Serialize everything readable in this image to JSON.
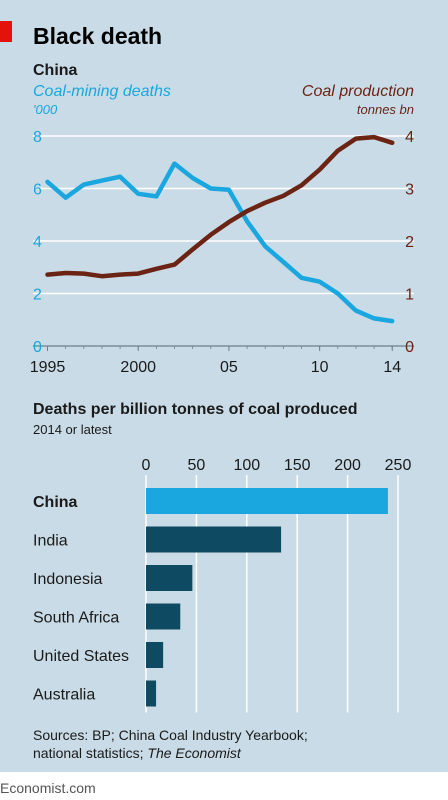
{
  "headline": "Black death",
  "footer": {
    "sources_prefix": "Sources: BP; China Coal Industry Yearbook;",
    "sources_line2": "national statistics;",
    "sources_italic": "The Economist",
    "site": "Economist.com"
  },
  "colors": {
    "deaths_line": "#1aa6de",
    "production_line": "#6b2314",
    "china_bar": "#1aa6de",
    "other_bars": "#0e4a62",
    "accent_red": "#e3120b",
    "panel_bg": "#c9dbe6"
  },
  "chart_data": [
    {
      "type": "line",
      "title": "China",
      "x_ticks": [
        "1995",
        "2000",
        "05",
        "10",
        "14"
      ],
      "x_tick_values": [
        1995,
        2000,
        2005,
        2010,
        2014
      ],
      "xlim": [
        1994.2,
        2015.2
      ],
      "left_axis": {
        "label": "Coal-mining deaths",
        "unit": "'000",
        "ylim": [
          0,
          8
        ],
        "ticks": [
          0,
          2,
          4,
          6,
          8
        ]
      },
      "right_axis": {
        "label": "Coal production",
        "unit": "tonnes bn",
        "ylim": [
          0,
          4
        ],
        "ticks": [
          0,
          1,
          2,
          3,
          4
        ]
      },
      "grid": true,
      "series": [
        {
          "name": "Coal-mining deaths",
          "axis": "left",
          "x": [
            1995,
            1996,
            1997,
            1998,
            1999,
            2000,
            2001,
            2002,
            2003,
            2004,
            2005,
            2006,
            2007,
            2008,
            2009,
            2010,
            2011,
            2012,
            2013,
            2014
          ],
          "values": [
            6.25,
            5.65,
            6.15,
            6.3,
            6.45,
            5.8,
            5.7,
            6.95,
            6.4,
            6.0,
            5.95,
            4.75,
            3.8,
            3.2,
            2.6,
            2.45,
            2.0,
            1.35,
            1.05,
            0.95
          ]
        },
        {
          "name": "Coal production",
          "axis": "right",
          "x": [
            1995,
            1996,
            1997,
            1998,
            1999,
            2000,
            2001,
            2002,
            2003,
            2004,
            2005,
            2006,
            2007,
            2008,
            2009,
            2010,
            2011,
            2012,
            2013,
            2014
          ],
          "values": [
            1.36,
            1.39,
            1.38,
            1.33,
            1.36,
            1.38,
            1.47,
            1.55,
            1.84,
            2.12,
            2.36,
            2.57,
            2.73,
            2.86,
            3.06,
            3.36,
            3.72,
            3.95,
            3.98,
            3.87
          ]
        }
      ]
    },
    {
      "type": "bar",
      "orientation": "horizontal",
      "title": "Deaths per billion tonnes of coal produced",
      "subtitle": "2014 or latest",
      "x_ticks": [
        0,
        50,
        100,
        150,
        200,
        250
      ],
      "xlim": [
        0,
        250
      ],
      "grid": true,
      "categories": [
        "China",
        "India",
        "Indonesia",
        "South Africa",
        "United States",
        "Australia"
      ],
      "values": [
        240,
        134,
        46,
        34,
        17,
        10
      ]
    }
  ]
}
